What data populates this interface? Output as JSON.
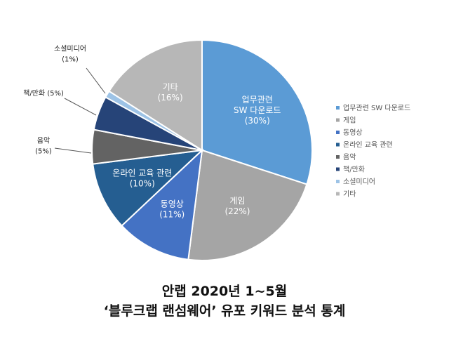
{
  "chart_data": {
    "type": "pie",
    "title": [
      "안랩 2020년 1~5월",
      "‘블루크랩 랜섬웨어’ 유포 키워드 분석 통계"
    ],
    "legend_position": "right",
    "slices": [
      {
        "label": "업무관련 SW 다운로드",
        "display": [
          "업무관련",
          "SW 다운로드",
          "(30%)"
        ],
        "value": 30,
        "color": "#5B9BD5",
        "text_color": "#ffffff"
      },
      {
        "label": "게임",
        "display": [
          "게임",
          "(22%)"
        ],
        "value": 22,
        "color": "#A5A5A5",
        "text_color": "#ffffff"
      },
      {
        "label": "동영상",
        "display": [
          "동영상",
          "(11%)"
        ],
        "value": 11,
        "color": "#4472C4",
        "text_color": "#ffffff"
      },
      {
        "label": "온라인 교육 관련",
        "display": [
          "온라인 교육 관련",
          "(10%)"
        ],
        "value": 10,
        "color": "#255E91",
        "text_color": "#ffffff"
      },
      {
        "label": "음악",
        "display": [
          "음악",
          "(5%)"
        ],
        "value": 5,
        "color": "#636363",
        "text_color": "#222222"
      },
      {
        "label": "책/만화",
        "display": [
          "책/만화 (5%)"
        ],
        "value": 5,
        "color": "#264478",
        "text_color": "#222222"
      },
      {
        "label": "소셜미디어",
        "display": [
          "소셜미디어",
          "(1%)"
        ],
        "value": 1,
        "color": "#9DC3E6",
        "text_color": "#222222"
      },
      {
        "label": "기타",
        "display": [
          "기타",
          "(16%)"
        ],
        "value": 16,
        "color": "#B7B7B7",
        "text_color": "#ffffff"
      }
    ]
  }
}
